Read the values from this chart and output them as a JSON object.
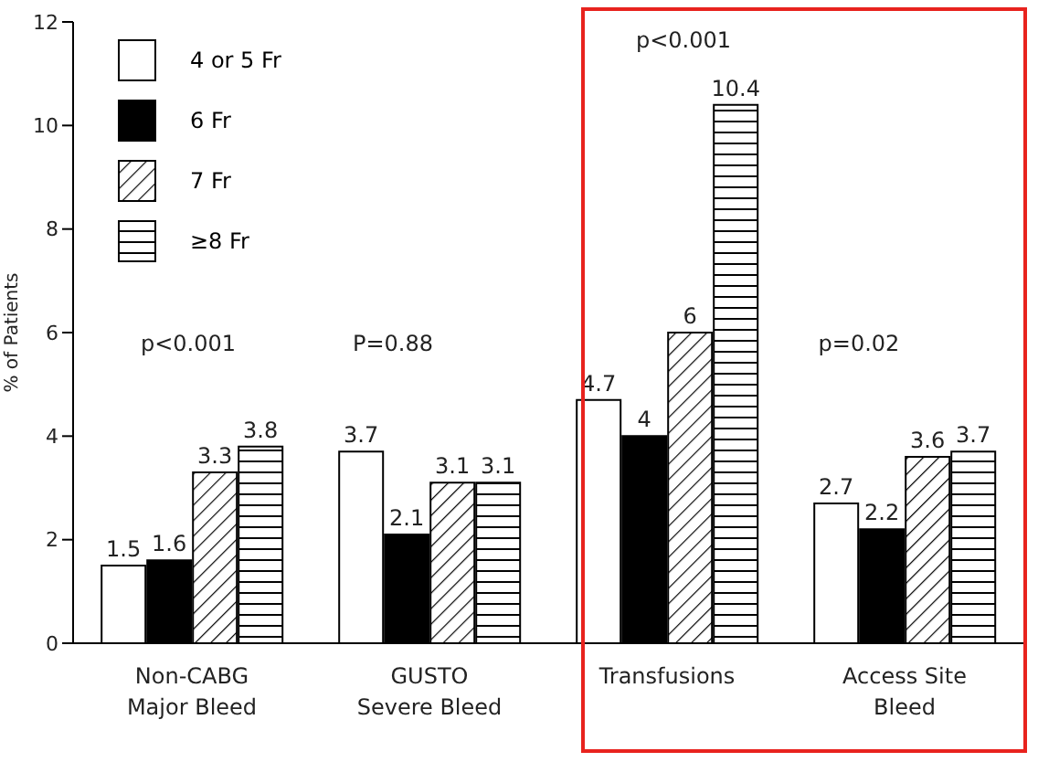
{
  "chart_data": {
    "type": "bar",
    "ylabel": "% of Patients",
    "categories": [
      "Non-CABG\nMajor Bleed",
      "GUSTO\nSevere Bleed",
      "Transfusions",
      "Access Site\nBleed"
    ],
    "series": [
      {
        "name": "4 or 5 Fr",
        "color": "#ffffff",
        "values": [
          1.5,
          3.7,
          4.7,
          2.7
        ]
      },
      {
        "name": "6 Fr",
        "color": "#000000",
        "values": [
          1.6,
          2.1,
          4,
          2.2
        ]
      },
      {
        "name": "7 Fr",
        "color": "#000000",
        "values": [
          3.3,
          3.1,
          6,
          3.6
        ]
      },
      {
        "name": "≥8 Fr",
        "color": "#000000",
        "values": [
          3.8,
          3.1,
          10.4,
          3.7
        ]
      }
    ],
    "ylim": [
      0,
      12
    ],
    "yticks": [
      0,
      2,
      4,
      6,
      8,
      10,
      12
    ],
    "grid": false,
    "legend": "top left",
    "data_labels": true,
    "annotations": [
      "p<0.001",
      "P=0.88",
      "p<0.001",
      "p=0.02"
    ]
  }
}
